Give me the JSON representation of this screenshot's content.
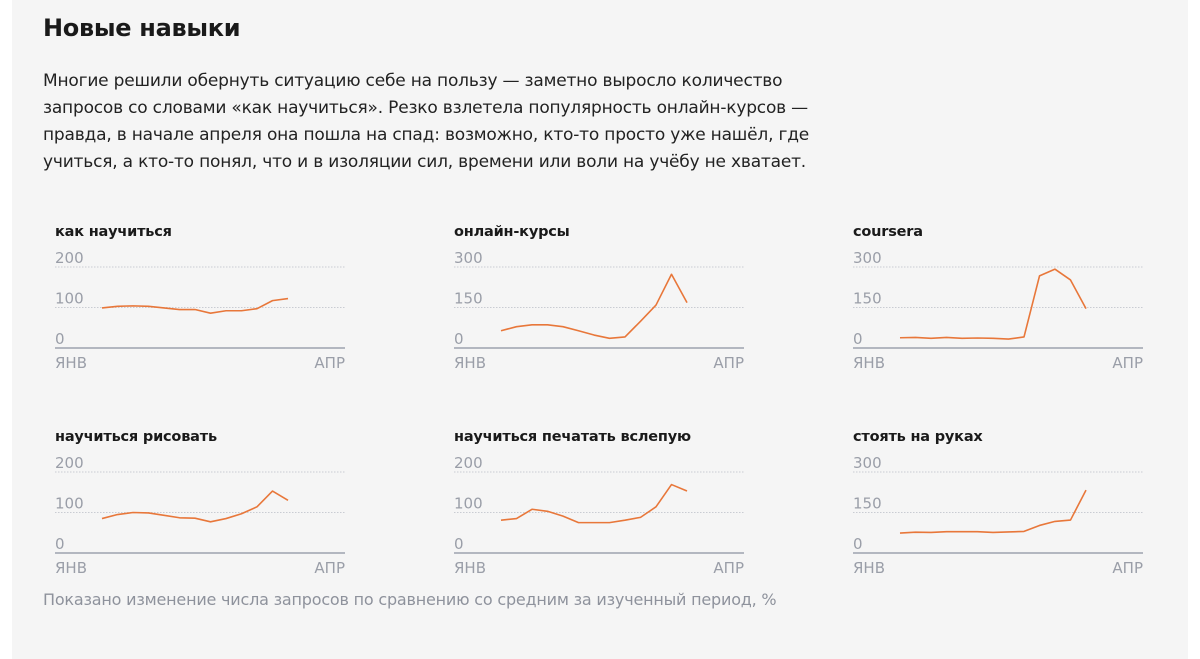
{
  "title": "Новые навыки",
  "lead": "Многие решили обернуть ситуацию себе на пользу — заметно выросло количество запросов со словами «как научиться». Резко взлетела популярность онлайн-курсов — правда, в начале апреля она пошла на спад: возможно, кто-то просто уже нашёл, где учиться, а кто-то понял, что и в изоляции сил, времени или воли на учёбу не хватает.",
  "note": "Показано изменение числа запросов по сравнению со средним за изученный период, %",
  "colors": {
    "line": "#e8773a",
    "grid": "#c9ccd2",
    "axis": "#b3b7c0",
    "tick": "#9a9ea8"
  },
  "chart_data": [
    {
      "type": "line",
      "title": "как научиться",
      "yticks": [
        "0",
        "100",
        "200"
      ],
      "ylim": [
        0,
        200
      ],
      "xticks": [
        "ЯНВ",
        "АПР"
      ],
      "grid": true,
      "values": [
        99,
        103,
        104,
        103,
        99,
        95,
        95,
        86,
        92,
        92,
        97,
        117,
        122
      ]
    },
    {
      "type": "line",
      "title": "онлайн-курсы",
      "yticks": [
        "0",
        "150",
        "300"
      ],
      "ylim": [
        0,
        300
      ],
      "xticks": [
        "ЯНВ",
        "АПР"
      ],
      "grid": true,
      "values": [
        64,
        79,
        86,
        86,
        79,
        64,
        48,
        36,
        41,
        99,
        159,
        273,
        168
      ]
    },
    {
      "type": "line",
      "title": "coursera",
      "yticks": [
        "0",
        "150",
        "300"
      ],
      "ylim": [
        0,
        300
      ],
      "xticks": [
        "ЯНВ",
        "АПР"
      ],
      "grid": true,
      "values": [
        38,
        39,
        36,
        39,
        36,
        37,
        36,
        33,
        41,
        267,
        292,
        252,
        146
      ]
    },
    {
      "type": "line",
      "title": "научиться рисовать",
      "yticks": [
        "0",
        "100",
        "200"
      ],
      "ylim": [
        0,
        200
      ],
      "xticks": [
        "ЯНВ",
        "АПР"
      ],
      "grid": true,
      "values": [
        85,
        95,
        100,
        99,
        93,
        87,
        86,
        77,
        85,
        97,
        114,
        153,
        130
      ]
    },
    {
      "type": "line",
      "title": "научиться печатать вслепую",
      "yticks": [
        "0",
        "100",
        "200"
      ],
      "ylim": [
        0,
        200
      ],
      "xticks": [
        "ЯНВ",
        "АПР"
      ],
      "grid": true,
      "values": [
        81,
        85,
        108,
        103,
        91,
        75,
        75,
        75,
        81,
        88,
        114,
        169,
        153
      ]
    },
    {
      "type": "line",
      "title": "стоять на руках",
      "yticks": [
        "0",
        "150",
        "300"
      ],
      "ylim": [
        0,
        300
      ],
      "xticks": [
        "ЯНВ",
        "АПР"
      ],
      "grid": true,
      "values": [
        74,
        77,
        76,
        79,
        79,
        79,
        76,
        78,
        80,
        102,
        117,
        122,
        233
      ]
    }
  ]
}
